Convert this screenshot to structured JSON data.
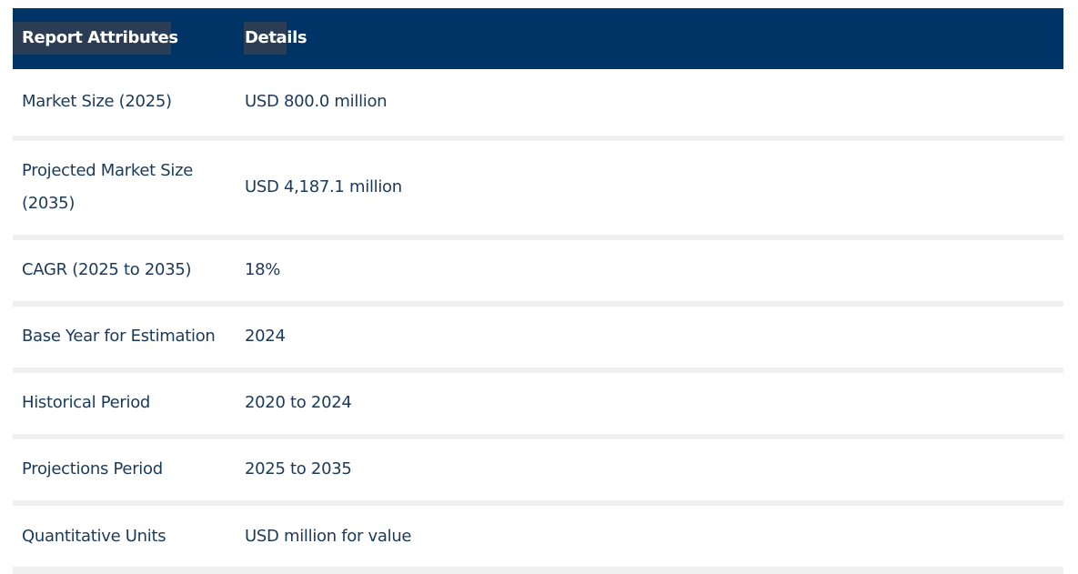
{
  "table": {
    "headers": [
      "Report Attributes",
      "Details"
    ],
    "rows": [
      {
        "attribute": "Market Size (2025)",
        "details": "USD 800.0 million"
      },
      {
        "attribute": "Projected Market Size (2035)",
        "details": "USD 4,187.1 million"
      },
      {
        "attribute": "CAGR (2025 to 2035)",
        "details": "18%"
      },
      {
        "attribute": "Base Year for Estimation",
        "details": "2024"
      },
      {
        "attribute": "Historical Period",
        "details": "2020 to 2024"
      },
      {
        "attribute": "Projections Period",
        "details": "2025 to 2035"
      },
      {
        "attribute": "Quantitative Units",
        "details": "USD million for value"
      }
    ]
  },
  "colors": {
    "header_bg": "#003366",
    "header_cell_bg": "#2a3d54",
    "text": "#1a3a5c",
    "row_gap": "#f0f0f0"
  }
}
